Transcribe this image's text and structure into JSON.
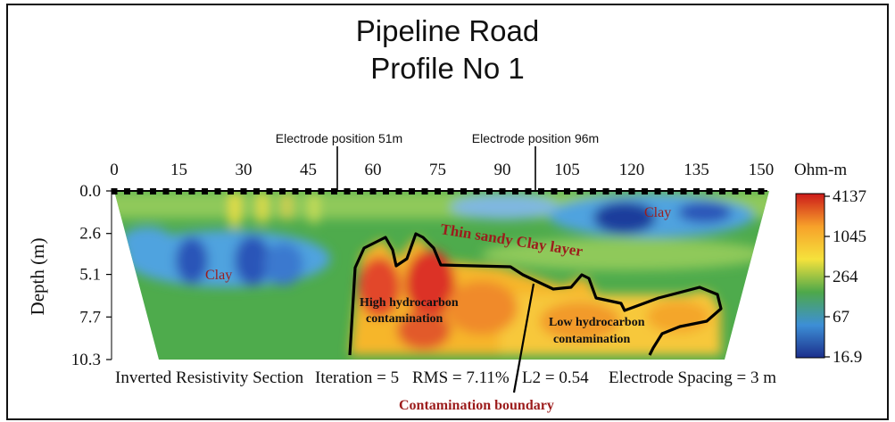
{
  "title_line1": "Pipeline Road",
  "title_line2": "Profile No 1",
  "electrode_markers": [
    {
      "label": "Electrode  position 51m",
      "position_m": 51
    },
    {
      "label": "Electrode  position 96m",
      "position_m": 96
    }
  ],
  "x_axis": {
    "ticks": [
      "0",
      "15",
      "30",
      "45",
      "60",
      "75",
      "90",
      "105",
      "120",
      "135",
      "150"
    ],
    "range_m": [
      0,
      150
    ],
    "electrode_spacing_m": 3
  },
  "y_axis": {
    "label": "Depth (m)",
    "ticks": [
      "0.0",
      "2.6",
      "5.1",
      "7.7",
      "10.3"
    ],
    "range_m": [
      0,
      10.3
    ]
  },
  "colorbar": {
    "unit": "Ohm-m",
    "ticks": [
      "4137",
      "1045",
      "264",
      "67",
      "16.9"
    ],
    "colors": [
      "#cc1a1a",
      "#f7a12a",
      "#f5e23c",
      "#4ea84a",
      "#3d8fd6",
      "#1c2f8c"
    ]
  },
  "annotations": {
    "clay_left": "Clay",
    "clay_right": "Clay",
    "sandy_layer": "Thin sandy Clay layer",
    "high_hc_1": "High hydrocarbon",
    "high_hc_2": "contamination",
    "low_hc_1": "Low hydrocarbon",
    "low_hc_2": "contamination",
    "boundary": "Contamination boundary"
  },
  "footer": {
    "section": "Inverted Resistivity Section",
    "iteration": "Iteration = 5",
    "rms": "RMS = 7.11%",
    "l2": "L2 = 0.54",
    "spacing": "Electrode Spacing = 3 m"
  },
  "accent_color": "#9c1c1c"
}
